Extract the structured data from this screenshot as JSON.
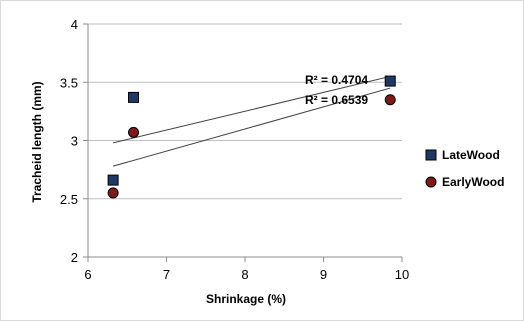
{
  "chart_data": {
    "type": "scatter",
    "xlabel": "Shrinkage (%)",
    "ylabel": "Tracheid length (mm)",
    "xlim": [
      6,
      10
    ],
    "ylim": [
      2,
      4
    ],
    "x_ticks": [
      "6",
      "7",
      "8",
      "9",
      "10"
    ],
    "y_ticks": [
      "2",
      "2.5",
      "3",
      "3.5",
      "4"
    ],
    "grid": "horizontal",
    "legend_position": "right",
    "series": [
      {
        "name": "LateWood",
        "marker": "square",
        "color": "#1f3864",
        "x": [
          6.32,
          6.58,
          9.85
        ],
        "y": [
          2.66,
          3.37,
          3.51
        ],
        "trendline": {
          "x": [
            6.32,
            9.85
          ],
          "y": [
            2.98,
            3.55
          ]
        },
        "r2_label": "R² = 0.4704"
      },
      {
        "name": "EarlyWood",
        "marker": "circle",
        "color": "#7f1a1a",
        "x": [
          6.32,
          6.58,
          9.85
        ],
        "y": [
          2.55,
          3.07,
          3.35
        ],
        "trendline": {
          "x": [
            6.32,
            9.85
          ],
          "y": [
            2.78,
            3.45
          ]
        },
        "r2_label": "R² = 0.6539"
      }
    ]
  }
}
